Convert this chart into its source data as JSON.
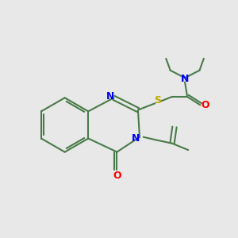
{
  "bg_color": "#e8e8e8",
  "bond_color": "#4a7a4a",
  "bond_width": 1.5,
  "n_color": "#0000ff",
  "o_color": "#ff0000",
  "s_color": "#bbaa00",
  "figsize": [
    3.0,
    3.0
  ],
  "dpi": 100,
  "xlim": [
    0,
    10
  ],
  "ylim": [
    0,
    10
  ]
}
